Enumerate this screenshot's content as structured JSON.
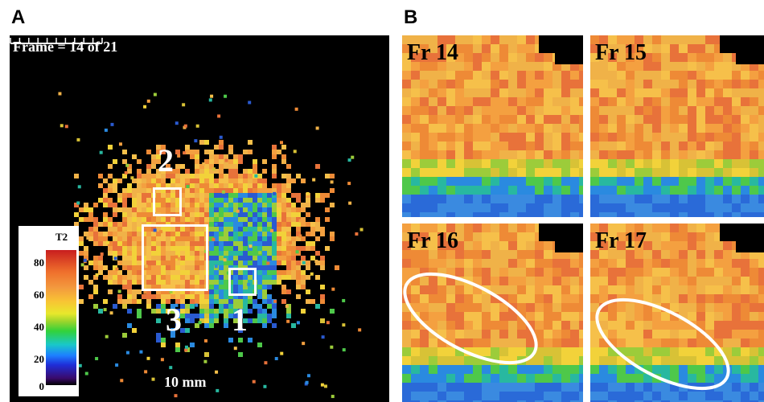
{
  "panel_a": {
    "letter": "A",
    "frame_label": "Frame = 14 of 21",
    "roi_labels": [
      "2",
      "3",
      "1"
    ],
    "colorbar": {
      "title": "T2",
      "ticks": [
        "80",
        "60",
        "40",
        "20",
        "0"
      ]
    },
    "scale_label": "10 mm"
  },
  "panel_b": {
    "letter": "B",
    "tiles": [
      "Fr 14",
      "Fr 15",
      "Fr 16",
      "Fr 17"
    ]
  },
  "colors": {
    "background": "#000000",
    "orange": "#f2a042",
    "yellow": "#f2d23a",
    "green": "#3ec84a",
    "blue": "#2a6ad8",
    "red": "#d8452a",
    "overlay": "#ffffff"
  }
}
